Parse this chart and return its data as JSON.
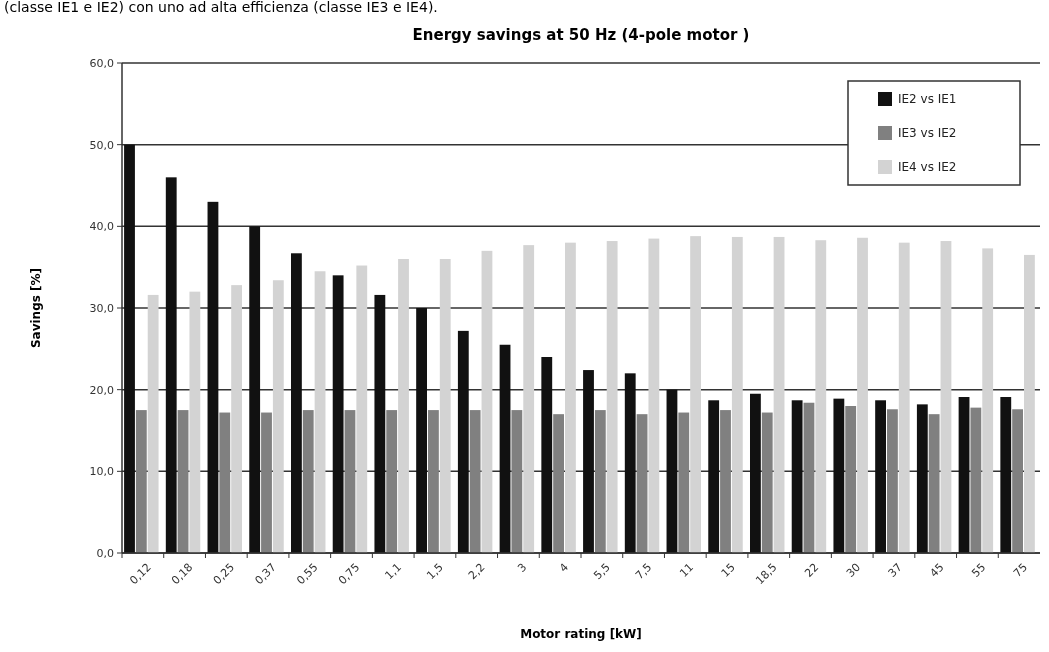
{
  "chart_data": {
    "type": "bar",
    "title": "Energy savings at 50 Hz (4-pole motor  )",
    "xlabel": "Motor rating [kW]",
    "ylabel": "Savings [%]",
    "annotations": [
      "(classe IE1 e IE2) con uno ad alta efficienza (classe IE3 e IE4)."
    ],
    "categories": [
      "0,12",
      "0,18",
      "0,25",
      "0,37",
      "0,55",
      "0,75",
      "1,1",
      "1,5",
      "2,2",
      "3",
      "4",
      "5,5",
      "7,5",
      "11",
      "15",
      "18,5",
      "22",
      "30",
      "37",
      "45",
      "55",
      "75"
    ],
    "series": [
      {
        "name": "IE2 vs IE1",
        "color": "#111111",
        "values": [
          50,
          46,
          43,
          40,
          36.7,
          34,
          31.6,
          30,
          27.2,
          25.5,
          24,
          22.4,
          22,
          20,
          18.7,
          19.5,
          18.7,
          18.9,
          18.7,
          18.2,
          19.1,
          19.1
        ]
      },
      {
        "name": "IE3 vs IE2",
        "color": "#808080",
        "values": [
          17.5,
          17.5,
          17.2,
          17.2,
          17.5,
          17.5,
          17.5,
          17.5,
          17.5,
          17.5,
          17,
          17.5,
          17,
          17.2,
          17.5,
          17.2,
          18.4,
          18,
          17.6,
          17,
          17.8,
          17.6
        ]
      },
      {
        "name": "IE4 vs IE2",
        "color": "#d3d3d3",
        "values": [
          31.6,
          32,
          32.8,
          33.4,
          34.5,
          35.2,
          36,
          36,
          37,
          37.7,
          38,
          38.2,
          38.5,
          38.8,
          38.7,
          38.7,
          38.3,
          38.6,
          38,
          38.2,
          37.3,
          36.5
        ]
      }
    ],
    "ylim": [
      0,
      60
    ],
    "yticks": [
      {
        "value": 0,
        "label": "0,0"
      },
      {
        "value": 10,
        "label": "10,0"
      },
      {
        "value": 20,
        "label": "20,0"
      },
      {
        "value": 30,
        "label": "30,0"
      },
      {
        "value": 40,
        "label": "40,0"
      },
      {
        "value": 50,
        "label": "50,0"
      },
      {
        "value": 60,
        "label": "60,0"
      }
    ],
    "grid": "y",
    "legend": "top right"
  }
}
